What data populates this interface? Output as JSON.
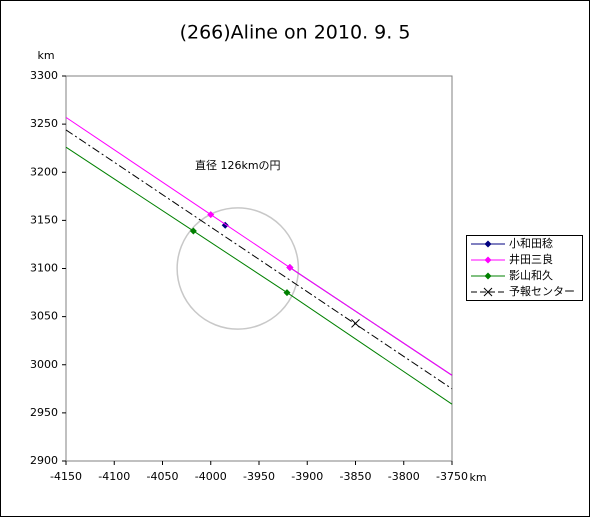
{
  "chart_data": {
    "type": "occultation",
    "title": "(266)Aline on 2010. 9. 5",
    "x_label": "km",
    "y_label": "km",
    "xlim": [
      -4150,
      -3750
    ],
    "ylim": [
      2900,
      3300
    ],
    "xticks": [
      -4150,
      -4100,
      -4050,
      -4000,
      -3950,
      -3900,
      -3850,
      -3800,
      -3750
    ],
    "yticks": [
      2900,
      2950,
      3000,
      3050,
      3100,
      3150,
      3200,
      3250,
      3300
    ],
    "circle": {
      "label": "直径 126kmの円",
      "center_x": -3972,
      "center_y": 3100,
      "diameter": 126,
      "color": "#c8c8c8"
    },
    "series": [
      {
        "name": "小和田稔",
        "color": "#000080",
        "marker": "diamond",
        "dash": "none",
        "line": {
          "x": [
            -3918,
            -3750
          ],
          "y": [
            3101,
            2989
          ]
        },
        "points": {
          "x": [
            -3985,
            -3918
          ],
          "y": [
            3145,
            3101
          ]
        }
      },
      {
        "name": "井田三良",
        "color": "#ff00ff",
        "marker": "diamond",
        "dash": "none",
        "line": {
          "x": [
            -4150,
            -4000,
            -3918,
            -3750
          ],
          "y": [
            3257,
            3156,
            3101,
            2989
          ]
        },
        "points": {
          "x": [
            -4000,
            -3918
          ],
          "y": [
            3156,
            3101
          ]
        }
      },
      {
        "name": "影山和久",
        "color": "#008000",
        "marker": "diamond",
        "dash": "none",
        "line": {
          "x": [
            -4150,
            -4018,
            -3921,
            -3750
          ],
          "y": [
            3226,
            3139,
            3075,
            2959
          ]
        },
        "points": {
          "x": [
            -4018,
            -3921
          ],
          "y": [
            3139,
            3075
          ]
        }
      },
      {
        "name": "予報センター",
        "color": "#000000",
        "marker": "x",
        "dash": "8,3,2,3",
        "line": {
          "x": [
            -4150,
            -3750
          ],
          "y": [
            3244,
            2975
          ]
        },
        "points": {
          "x": [
            -3850
          ],
          "y": [
            3043
          ]
        }
      }
    ]
  }
}
